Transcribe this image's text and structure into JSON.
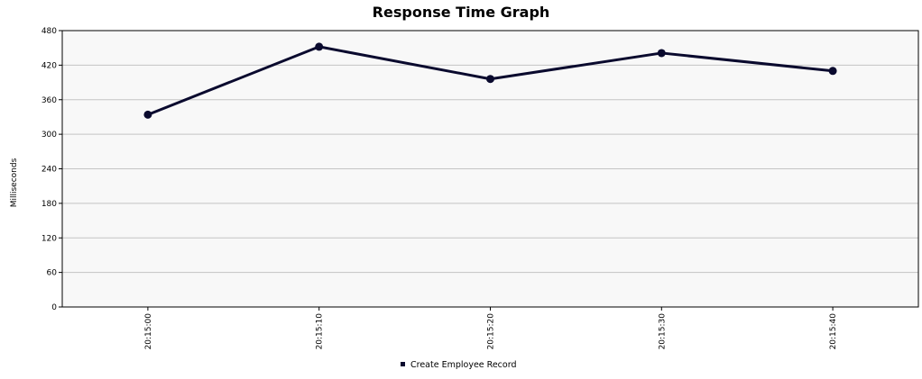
{
  "chart_data": {
    "type": "line",
    "title": "Response Time Graph",
    "xlabel": "",
    "ylabel": "Milliseconds",
    "x": [
      "20:15:00",
      "20:15:10",
      "20:15:20",
      "20:15:30",
      "20:15:40"
    ],
    "ylim": [
      0,
      480
    ],
    "yticks": [
      0,
      60,
      120,
      180,
      240,
      300,
      360,
      420,
      480
    ],
    "grid": true,
    "legend_position": "bottom",
    "series": [
      {
        "name": "Create Employee Record",
        "values": [
          334,
          452,
          396,
          441,
          410
        ],
        "color": "#0a0a2e"
      }
    ]
  }
}
